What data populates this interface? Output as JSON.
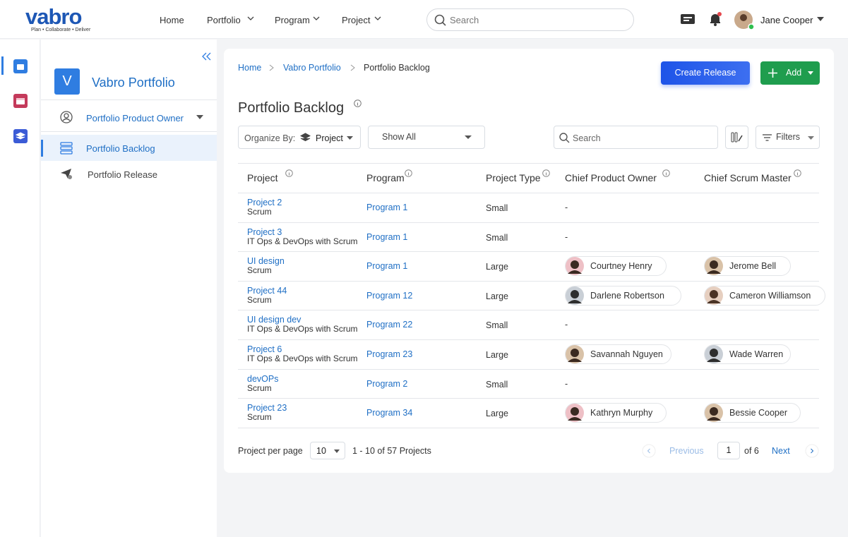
{
  "brand": {
    "name": "vabro",
    "tagline": "Plan • Collaborate • Deliver"
  },
  "nav": [
    "Home",
    "Portfolio",
    "Program",
    "Project"
  ],
  "top_search": "Search",
  "user": "Jane Cooper",
  "sidebar": {
    "initial": "V",
    "title": "Vabro Portfolio",
    "role": "Portfolio Product Owner",
    "items": [
      "Portfolio Backlog",
      "Portfolio Release"
    ]
  },
  "breadcrumb": [
    "Home",
    "Vabro Portfolio",
    "Portfolio Backlog"
  ],
  "buttons": {
    "create": "Create Release",
    "add": "Add"
  },
  "page_title": "Portfolio Backlog",
  "toolbar": {
    "organize_label": "Organize By:",
    "organize_value": "Project",
    "show": "Show All",
    "search": "Search",
    "filters": "Filters"
  },
  "table": {
    "columns": [
      "Project",
      "Program",
      "Project Type",
      "Chief Product Owner",
      "Chief Scrum Master"
    ],
    "rows": [
      {
        "project": "Project 2",
        "method": "Scrum",
        "program": "Program 1",
        "type": "Small",
        "owner": "-",
        "master": null
      },
      {
        "project": "Project 3",
        "method": "IT Ops & DevOps with Scrum",
        "program": "Program 1",
        "type": "Small",
        "owner": "-",
        "master": null
      },
      {
        "project": "UI design",
        "method": "Scrum",
        "program": "Program 1",
        "type": "Large",
        "owner": "Courtney Henry",
        "master": "Jerome Bell"
      },
      {
        "project": "Project 44",
        "method": "Scrum",
        "program": "Program 12",
        "type": "Large",
        "owner": "Darlene Robertson",
        "master": "Cameron Williamson"
      },
      {
        "project": "UI design dev",
        "method": "IT Ops & DevOps with Scrum",
        "program": "Program 22",
        "type": "Small",
        "owner": "-",
        "master": null
      },
      {
        "project": "Project 6",
        "method": "IT Ops & DevOps with Scrum",
        "program": "Program 23",
        "type": "Large",
        "owner": "Savannah Nguyen",
        "master": "Wade Warren"
      },
      {
        "project": "devOPs",
        "method": "Scrum",
        "program": "Program 2",
        "type": "Small",
        "owner": "-",
        "master": null
      },
      {
        "project": "Project 23",
        "method": "Scrum",
        "program": "Program 34",
        "type": "Large",
        "owner": "Kathryn Murphy",
        "master": "Bessie Cooper"
      }
    ]
  },
  "pagination": {
    "per_page_label": "Project per page",
    "per_page": "10",
    "range": "1 - 10 of 57 Projects",
    "previous": "Previous",
    "page": "1",
    "of": "of 6",
    "next": "Next"
  }
}
